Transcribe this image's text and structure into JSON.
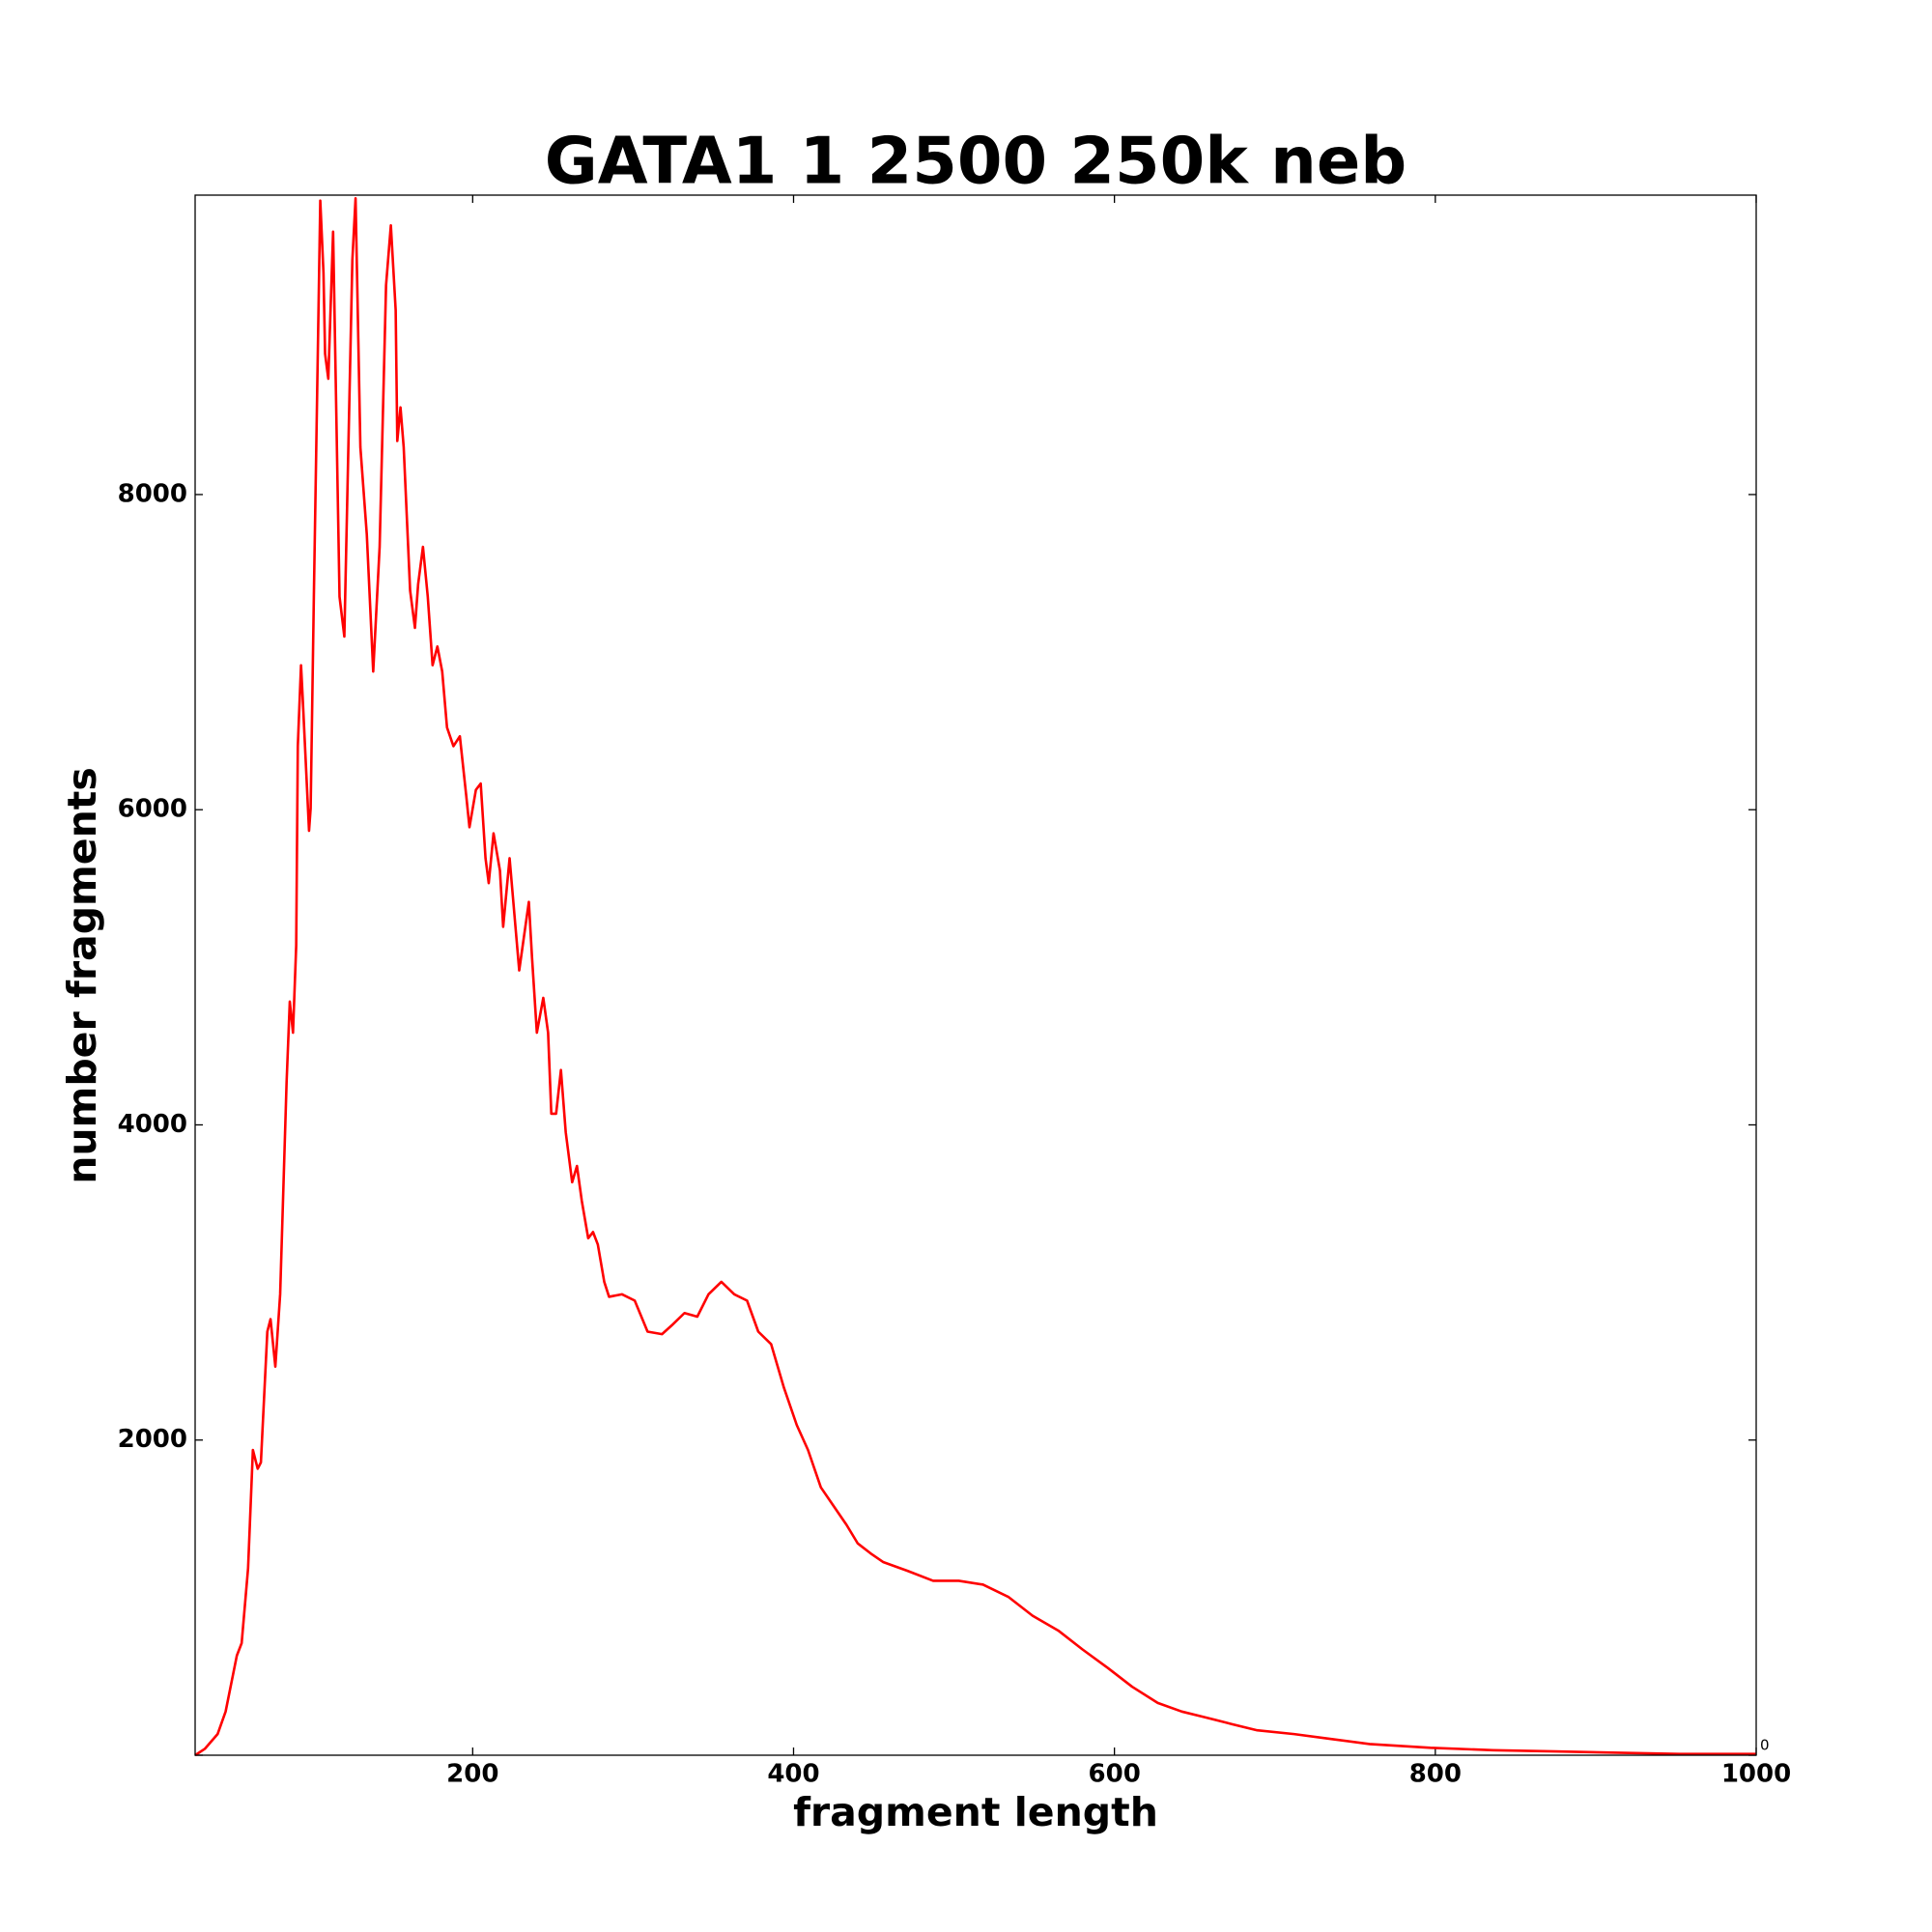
{
  "chart_data": {
    "type": "line",
    "title": "GATA1 1 2500 250k neb",
    "x_label": "fragment length",
    "y_label": "number fragments",
    "xlim": [
      27,
      1000
    ],
    "ylim": [
      0,
      9900
    ],
    "xticks": [
      200,
      400,
      600,
      800,
      1000
    ],
    "yticks": [
      0,
      2000,
      4000,
      6000,
      8000
    ],
    "color": "#ff0000",
    "x": [
      27,
      33,
      41,
      46,
      53,
      56,
      60,
      63,
      66,
      68,
      72,
      74,
      77,
      80,
      84,
      86,
      88,
      90,
      91,
      93,
      94,
      98,
      99,
      101,
      105,
      107,
      108,
      110,
      113,
      117,
      120,
      125,
      127,
      130,
      134,
      138,
      142,
      146,
      149,
      152,
      153,
      155,
      157,
      161,
      164,
      166,
      169,
      172,
      175,
      178,
      181,
      184,
      188,
      192,
      196,
      198,
      202,
      205,
      208,
      210,
      213,
      217,
      219,
      223,
      227,
      229,
      235,
      237,
      240,
      244,
      247,
      249,
      252,
      255,
      258,
      262,
      265,
      268,
      272,
      275,
      278,
      282,
      285,
      293,
      301,
      309,
      318,
      324,
      332,
      340,
      347,
      355,
      363,
      371,
      378,
      386,
      394,
      402,
      409,
      417,
      425,
      433,
      440,
      448,
      456,
      471,
      487,
      503,
      518,
      534,
      549,
      565,
      580,
      596,
      611,
      627,
      642,
      658,
      673,
      689,
      712,
      735,
      759,
      797,
      836,
      875,
      914,
      952,
      1000
    ],
    "values": [
      0,
      40,
      134,
      277,
      632,
      711,
      1186,
      1937,
      1818,
      1858,
      2688,
      2767,
      2466,
      2925,
      4269,
      4783,
      4585,
      5138,
      6403,
      6917,
      6719,
      5866,
      6008,
      7352,
      9865,
      9407,
      8893,
      8735,
      9668,
      7352,
      7099,
      9487,
      9880,
      8300,
      7747,
      6877,
      7668,
      9328,
      9708,
      9170,
      8340,
      8553,
      8300,
      7391,
      7154,
      7431,
      7668,
      7352,
      6917,
      7036,
      6877,
      6522,
      6403,
      6466,
      6087,
      5889,
      6126,
      6166,
      5692,
      5534,
      5850,
      5613,
      5257,
      5692,
      5217,
      4980,
      5415,
      5059,
      4585,
      4806,
      4585,
      4071,
      4071,
      4348,
      3953,
      3636,
      3739,
      3518,
      3281,
      3320,
      3241,
      3004,
      2909,
      2925,
      2885,
      2688,
      2672,
      2727,
      2806,
      2783,
      2925,
      3004,
      2925,
      2885,
      2688,
      2609,
      2332,
      2095,
      1937,
      1700,
      1581,
      1462,
      1344,
      1281,
      1225,
      1170,
      1107,
      1107,
      1083,
      1004,
      885,
      791,
      672,
      553,
      435,
      332,
      277,
      237,
      198,
      158,
      134,
      103,
      71,
      47,
      32,
      24,
      16,
      8,
      8
    ]
  }
}
